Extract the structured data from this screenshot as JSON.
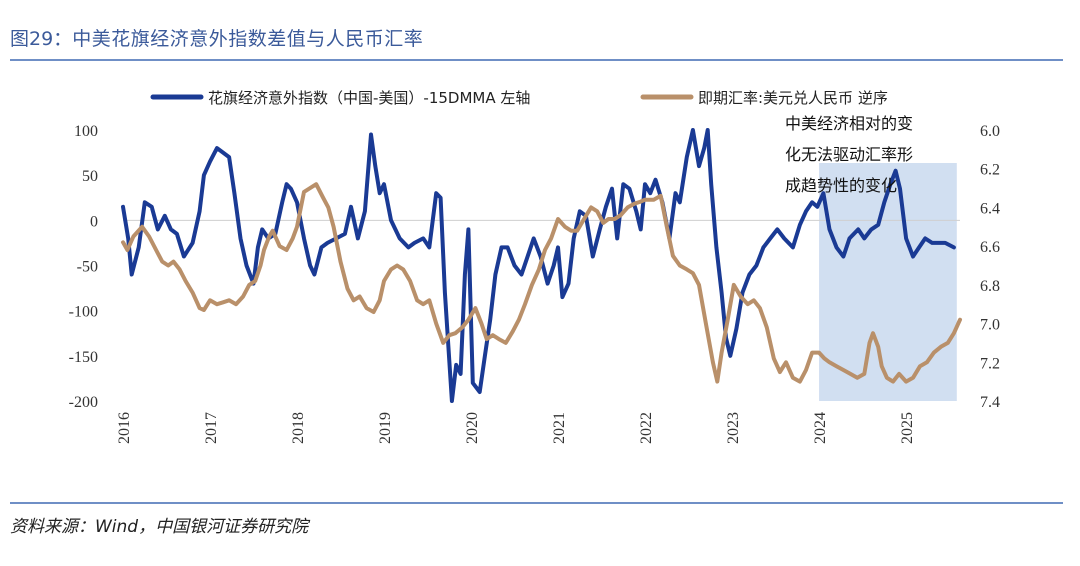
{
  "figure": {
    "number": "图29：",
    "title": "中美花旗经济意外指数差值与人民币汇率",
    "source": "资料来源：Wind，中国银河证券研究院"
  },
  "annotation": "中美经济相对的变化无法驱动汇率形成趋势性的变化",
  "colors": {
    "surprise": "#1a3a94",
    "fx": "#b9906a",
    "highlight": "#c9d9ef",
    "title": "#3b5a9a"
  },
  "chart_data": {
    "type": "line",
    "x_ticks": [
      "2016",
      "2017",
      "2018",
      "2019",
      "2020",
      "2021",
      "2022",
      "2023",
      "2024",
      "2025"
    ],
    "y_left": {
      "lim": [
        -200,
        100
      ],
      "ticks": [
        "100",
        "50",
        "0",
        "-50",
        "-100",
        "-150",
        "-200"
      ]
    },
    "y_right": {
      "lim": [
        6.0,
        7.4
      ],
      "inverted": true,
      "ticks": [
        "6.0",
        "6.2",
        "6.4",
        "6.6",
        "6.8",
        "7.0",
        "7.2",
        "7.4"
      ]
    },
    "highlight_range": [
      "2024-01",
      "2025-08"
    ],
    "series": [
      {
        "name": "花旗经济意外指数（中国-美国）-15DMMA 左轴",
        "axis": "left",
        "points": [
          [
            2016.0,
            15
          ],
          [
            2016.06,
            -20
          ],
          [
            2016.1,
            -60
          ],
          [
            2016.18,
            -30
          ],
          [
            2016.25,
            20
          ],
          [
            2016.33,
            15
          ],
          [
            2016.4,
            -10
          ],
          [
            2016.48,
            5
          ],
          [
            2016.55,
            -10
          ],
          [
            2016.62,
            -15
          ],
          [
            2016.7,
            -40
          ],
          [
            2016.8,
            -25
          ],
          [
            2016.88,
            10
          ],
          [
            2016.93,
            50
          ],
          [
            2017.0,
            65
          ],
          [
            2017.08,
            80
          ],
          [
            2017.15,
            75
          ],
          [
            2017.22,
            70
          ],
          [
            2017.28,
            30
          ],
          [
            2017.35,
            -20
          ],
          [
            2017.42,
            -50
          ],
          [
            2017.5,
            -70
          ],
          [
            2017.55,
            -30
          ],
          [
            2017.6,
            -10
          ],
          [
            2017.67,
            -20
          ],
          [
            2017.75,
            -15
          ],
          [
            2017.83,
            20
          ],
          [
            2017.88,
            40
          ],
          [
            2017.93,
            35
          ],
          [
            2018.0,
            20
          ],
          [
            2018.08,
            -20
          ],
          [
            2018.15,
            -50
          ],
          [
            2018.2,
            -60
          ],
          [
            2018.28,
            -30
          ],
          [
            2018.35,
            -25
          ],
          [
            2018.45,
            -20
          ],
          [
            2018.55,
            -15
          ],
          [
            2018.62,
            15
          ],
          [
            2018.7,
            -20
          ],
          [
            2018.78,
            10
          ],
          [
            2018.85,
            95
          ],
          [
            2018.9,
            60
          ],
          [
            2018.95,
            30
          ],
          [
            2019.0,
            40
          ],
          [
            2019.08,
            0
          ],
          [
            2019.18,
            -20
          ],
          [
            2019.28,
            -30
          ],
          [
            2019.35,
            -25
          ],
          [
            2019.45,
            -20
          ],
          [
            2019.52,
            -30
          ],
          [
            2019.6,
            30
          ],
          [
            2019.65,
            25
          ],
          [
            2019.7,
            -80
          ],
          [
            2019.78,
            -200
          ],
          [
            2019.83,
            -160
          ],
          [
            2019.88,
            -170
          ],
          [
            2019.93,
            -60
          ],
          [
            2019.97,
            -10
          ],
          [
            2020.02,
            -180
          ],
          [
            2020.1,
            -190
          ],
          [
            2020.16,
            -150
          ],
          [
            2020.22,
            -110
          ],
          [
            2020.28,
            -60
          ],
          [
            2020.35,
            -30
          ],
          [
            2020.42,
            -30
          ],
          [
            2020.5,
            -50
          ],
          [
            2020.58,
            -60
          ],
          [
            2020.65,
            -40
          ],
          [
            2020.72,
            -20
          ],
          [
            2020.8,
            -40
          ],
          [
            2020.88,
            -70
          ],
          [
            2020.95,
            -50
          ],
          [
            2021.0,
            -30
          ],
          [
            2021.05,
            -85
          ],
          [
            2021.12,
            -70
          ],
          [
            2021.18,
            -20
          ],
          [
            2021.25,
            10
          ],
          [
            2021.32,
            5
          ],
          [
            2021.4,
            -40
          ],
          [
            2021.48,
            -10
          ],
          [
            2021.55,
            15
          ],
          [
            2021.62,
            35
          ],
          [
            2021.68,
            -20
          ],
          [
            2021.75,
            40
          ],
          [
            2021.82,
            35
          ],
          [
            2021.9,
            10
          ],
          [
            2021.95,
            -10
          ],
          [
            2022.0,
            40
          ],
          [
            2022.06,
            30
          ],
          [
            2022.12,
            45
          ],
          [
            2022.2,
            20
          ],
          [
            2022.28,
            -20
          ],
          [
            2022.35,
            30
          ],
          [
            2022.4,
            20
          ],
          [
            2022.48,
            70
          ],
          [
            2022.55,
            100
          ],
          [
            2022.62,
            60
          ],
          [
            2022.68,
            80
          ],
          [
            2022.72,
            100
          ],
          [
            2022.76,
            40
          ],
          [
            2022.82,
            -30
          ],
          [
            2022.88,
            -80
          ],
          [
            2022.93,
            -130
          ],
          [
            2022.98,
            -150
          ],
          [
            2023.05,
            -120
          ],
          [
            2023.12,
            -80
          ],
          [
            2023.2,
            -60
          ],
          [
            2023.28,
            -50
          ],
          [
            2023.36,
            -30
          ],
          [
            2023.44,
            -20
          ],
          [
            2023.52,
            -10
          ],
          [
            2023.6,
            -20
          ],
          [
            2023.7,
            -30
          ],
          [
            2023.78,
            -5
          ],
          [
            2023.85,
            10
          ],
          [
            2023.92,
            20
          ],
          [
            2023.98,
            15
          ],
          [
            2024.05,
            30
          ],
          [
            2024.12,
            -10
          ],
          [
            2024.2,
            -30
          ],
          [
            2024.28,
            -40
          ],
          [
            2024.35,
            -20
          ],
          [
            2024.45,
            -10
          ],
          [
            2024.52,
            -20
          ],
          [
            2024.6,
            -10
          ],
          [
            2024.68,
            -5
          ],
          [
            2024.75,
            20
          ],
          [
            2024.82,
            40
          ],
          [
            2024.88,
            55
          ],
          [
            2024.93,
            35
          ],
          [
            2025.0,
            -20
          ],
          [
            2025.08,
            -40
          ],
          [
            2025.15,
            -30
          ],
          [
            2025.22,
            -20
          ],
          [
            2025.3,
            -25
          ],
          [
            2025.38,
            -25
          ],
          [
            2025.45,
            -25
          ],
          [
            2025.55,
            -30
          ]
        ]
      },
      {
        "name": "即期汇率:美元兑人民币 逆序",
        "axis": "right",
        "points": [
          [
            2016.0,
            6.58
          ],
          [
            2016.05,
            6.62
          ],
          [
            2016.12,
            6.55
          ],
          [
            2016.22,
            6.5
          ],
          [
            2016.3,
            6.55
          ],
          [
            2016.38,
            6.62
          ],
          [
            2016.45,
            6.68
          ],
          [
            2016.52,
            6.7
          ],
          [
            2016.58,
            6.68
          ],
          [
            2016.65,
            6.72
          ],
          [
            2016.72,
            6.78
          ],
          [
            2016.8,
            6.84
          ],
          [
            2016.88,
            6.92
          ],
          [
            2016.93,
            6.93
          ],
          [
            2017.0,
            6.88
          ],
          [
            2017.08,
            6.9
          ],
          [
            2017.15,
            6.89
          ],
          [
            2017.22,
            6.88
          ],
          [
            2017.3,
            6.9
          ],
          [
            2017.38,
            6.86
          ],
          [
            2017.45,
            6.8
          ],
          [
            2017.52,
            6.78
          ],
          [
            2017.58,
            6.7
          ],
          [
            2017.62,
            6.62
          ],
          [
            2017.68,
            6.55
          ],
          [
            2017.72,
            6.52
          ],
          [
            2017.8,
            6.6
          ],
          [
            2017.88,
            6.62
          ],
          [
            2017.95,
            6.56
          ],
          [
            2018.0,
            6.5
          ],
          [
            2018.08,
            6.32
          ],
          [
            2018.15,
            6.3
          ],
          [
            2018.22,
            6.28
          ],
          [
            2018.3,
            6.35
          ],
          [
            2018.36,
            6.4
          ],
          [
            2018.42,
            6.5
          ],
          [
            2018.5,
            6.68
          ],
          [
            2018.58,
            6.82
          ],
          [
            2018.65,
            6.88
          ],
          [
            2018.72,
            6.86
          ],
          [
            2018.8,
            6.92
          ],
          [
            2018.88,
            6.94
          ],
          [
            2018.95,
            6.88
          ],
          [
            2019.0,
            6.78
          ],
          [
            2019.08,
            6.72
          ],
          [
            2019.15,
            6.7
          ],
          [
            2019.22,
            6.72
          ],
          [
            2019.3,
            6.78
          ],
          [
            2019.38,
            6.88
          ],
          [
            2019.45,
            6.9
          ],
          [
            2019.52,
            6.88
          ],
          [
            2019.6,
            7.0
          ],
          [
            2019.68,
            7.1
          ],
          [
            2019.75,
            7.06
          ],
          [
            2019.82,
            7.05
          ],
          [
            2019.9,
            7.02
          ],
          [
            2019.97,
            6.98
          ],
          [
            2020.05,
            6.92
          ],
          [
            2020.12,
            7.0
          ],
          [
            2020.18,
            7.08
          ],
          [
            2020.25,
            7.06
          ],
          [
            2020.32,
            7.08
          ],
          [
            2020.4,
            7.1
          ],
          [
            2020.48,
            7.04
          ],
          [
            2020.55,
            6.98
          ],
          [
            2020.62,
            6.9
          ],
          [
            2020.7,
            6.8
          ],
          [
            2020.78,
            6.72
          ],
          [
            2020.85,
            6.62
          ],
          [
            2020.92,
            6.56
          ],
          [
            2021.0,
            6.46
          ],
          [
            2021.08,
            6.5
          ],
          [
            2021.15,
            6.52
          ],
          [
            2021.22,
            6.52
          ],
          [
            2021.3,
            6.46
          ],
          [
            2021.38,
            6.4
          ],
          [
            2021.45,
            6.42
          ],
          [
            2021.52,
            6.48
          ],
          [
            2021.58,
            6.46
          ],
          [
            2021.65,
            6.46
          ],
          [
            2021.72,
            6.44
          ],
          [
            2021.8,
            6.4
          ],
          [
            2021.88,
            6.38
          ],
          [
            2021.95,
            6.37
          ],
          [
            2022.0,
            6.36
          ],
          [
            2022.1,
            6.36
          ],
          [
            2022.18,
            6.34
          ],
          [
            2022.25,
            6.5
          ],
          [
            2022.32,
            6.65
          ],
          [
            2022.4,
            6.7
          ],
          [
            2022.48,
            6.72
          ],
          [
            2022.55,
            6.74
          ],
          [
            2022.62,
            6.8
          ],
          [
            2022.7,
            7.0
          ],
          [
            2022.78,
            7.2
          ],
          [
            2022.83,
            7.3
          ],
          [
            2022.88,
            7.15
          ],
          [
            2022.95,
            6.98
          ],
          [
            2023.02,
            6.8
          ],
          [
            2023.1,
            6.86
          ],
          [
            2023.18,
            6.9
          ],
          [
            2023.25,
            6.88
          ],
          [
            2023.32,
            6.92
          ],
          [
            2023.4,
            7.02
          ],
          [
            2023.48,
            7.18
          ],
          [
            2023.55,
            7.25
          ],
          [
            2023.62,
            7.2
          ],
          [
            2023.7,
            7.28
          ],
          [
            2023.78,
            7.3
          ],
          [
            2023.85,
            7.24
          ],
          [
            2023.92,
            7.15
          ],
          [
            2024.0,
            7.15
          ],
          [
            2024.06,
            7.18
          ],
          [
            2024.12,
            7.2
          ],
          [
            2024.2,
            7.22
          ],
          [
            2024.28,
            7.24
          ],
          [
            2024.36,
            7.26
          ],
          [
            2024.44,
            7.28
          ],
          [
            2024.52,
            7.26
          ],
          [
            2024.58,
            7.1
          ],
          [
            2024.62,
            7.05
          ],
          [
            2024.68,
            7.12
          ],
          [
            2024.72,
            7.22
          ],
          [
            2024.78,
            7.28
          ],
          [
            2024.85,
            7.3
          ],
          [
            2024.92,
            7.26
          ],
          [
            2025.0,
            7.3
          ],
          [
            2025.08,
            7.28
          ],
          [
            2025.16,
            7.22
          ],
          [
            2025.24,
            7.2
          ],
          [
            2025.32,
            7.15
          ],
          [
            2025.4,
            7.12
          ],
          [
            2025.48,
            7.1
          ],
          [
            2025.55,
            7.05
          ],
          [
            2025.62,
            6.98
          ]
        ]
      }
    ]
  }
}
